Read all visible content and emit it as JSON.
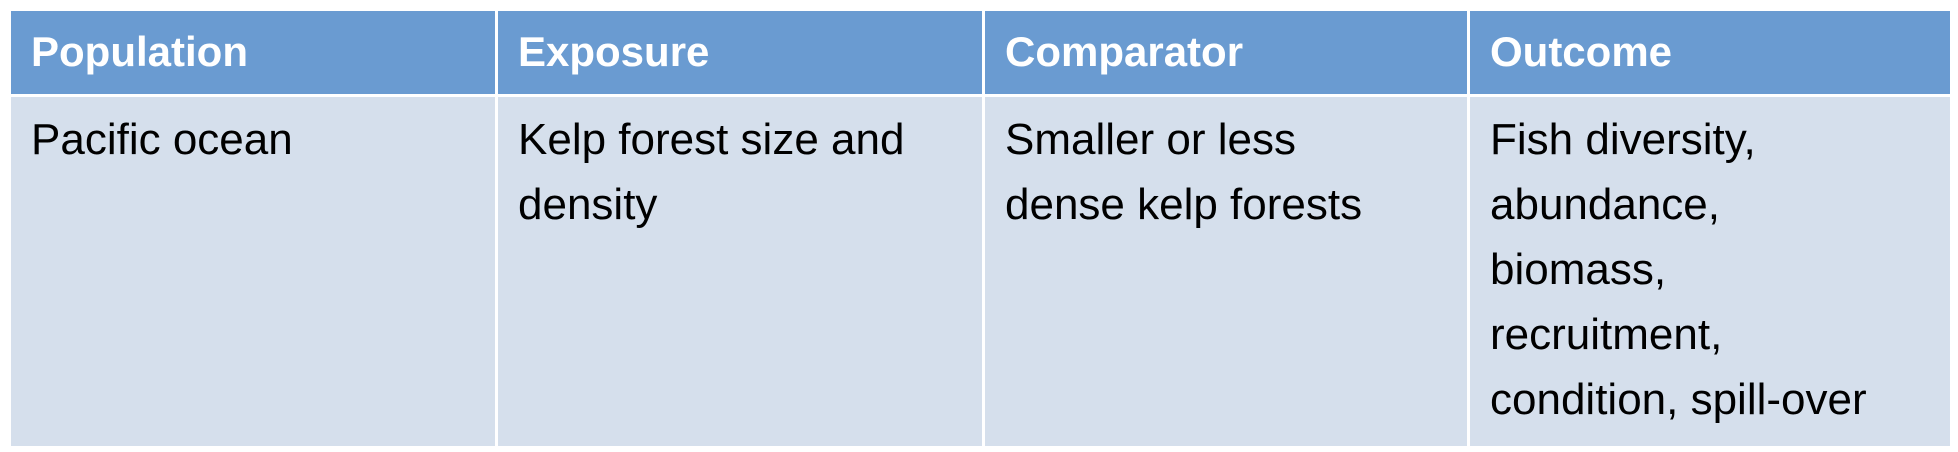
{
  "table": {
    "headers": [
      "Population",
      "Exposure",
      "Comparator",
      "Outcome"
    ],
    "rows": [
      [
        "Pacific ocean",
        "Kelp forest size and\ndensity",
        "Smaller or less\ndense kelp forests",
        "Fish diversity,\nabundance,\nbiomass,\nrecruitment,\ncondition, spill-over"
      ]
    ]
  },
  "colors": {
    "header_background": "#6a9bd1",
    "body_background": "#d5dfec",
    "header_text": "#ffffff",
    "body_text": "#000000"
  }
}
